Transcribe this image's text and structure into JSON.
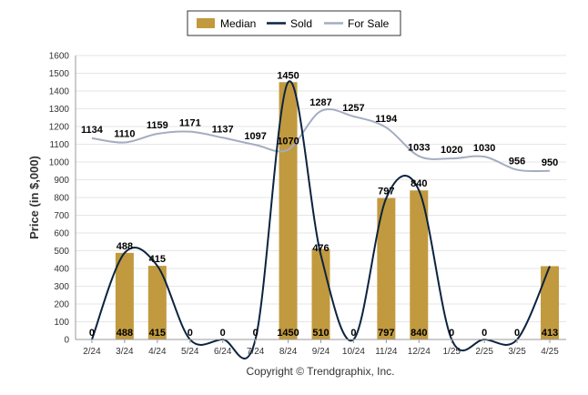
{
  "chart_data": {
    "type": "bar",
    "categories": [
      "2/24",
      "3/24",
      "4/24",
      "5/24",
      "6/24",
      "7/24",
      "8/24",
      "9/24",
      "10/24",
      "11/24",
      "12/24",
      "1/25",
      "2/25",
      "3/25",
      "4/25"
    ],
    "ylabel": "Price (in $,000)",
    "ylim": [
      0,
      1600
    ],
    "yticks": [
      0,
      100,
      200,
      300,
      400,
      500,
      600,
      700,
      800,
      900,
      1000,
      1100,
      1200,
      1300,
      1400,
      1500,
      1600
    ],
    "grid": true,
    "legend_position": "top-center",
    "series": [
      {
        "name": "Median",
        "kind": "bar",
        "color": "#c19a3f",
        "values": [
          0,
          488,
          415,
          0,
          0,
          0,
          1450,
          510,
          0,
          797,
          840,
          0,
          0,
          0,
          413
        ],
        "bottom_labels": [
          "0",
          "488",
          "415",
          "0",
          "0",
          "0",
          "1450",
          "510",
          "0",
          "797",
          "840",
          "0",
          "0",
          "0",
          "413"
        ]
      },
      {
        "name": "Sold",
        "kind": "line",
        "color": "#0c2340",
        "values": [
          0,
          488,
          415,
          0,
          0,
          0,
          1450,
          476,
          0,
          797,
          840,
          0,
          0,
          0,
          413
        ],
        "labels": [
          "",
          "488",
          "415",
          "",
          "",
          "",
          "1450",
          "476",
          "",
          "797",
          "840",
          "",
          "",
          "",
          ""
        ]
      },
      {
        "name": "For Sale",
        "kind": "line",
        "color": "#a3adc2",
        "values": [
          1134,
          1110,
          1159,
          1171,
          1137,
          1097,
          1070,
          1287,
          1257,
          1194,
          1033,
          1020,
          1030,
          956,
          950
        ],
        "labels": [
          "1134",
          "1110",
          "1159",
          "1171",
          "1137",
          "1097",
          "1070",
          "1287",
          "1257",
          "1194",
          "1033",
          "1020",
          "1030",
          "956",
          "950"
        ]
      }
    ],
    "zero_labels": [
      "0",
      "",
      "",
      "0",
      "0",
      "0",
      "",
      "",
      "0",
      "",
      "",
      "0",
      "0",
      "0",
      ""
    ],
    "copyright": "Copyright © Trendgraphix, Inc."
  }
}
